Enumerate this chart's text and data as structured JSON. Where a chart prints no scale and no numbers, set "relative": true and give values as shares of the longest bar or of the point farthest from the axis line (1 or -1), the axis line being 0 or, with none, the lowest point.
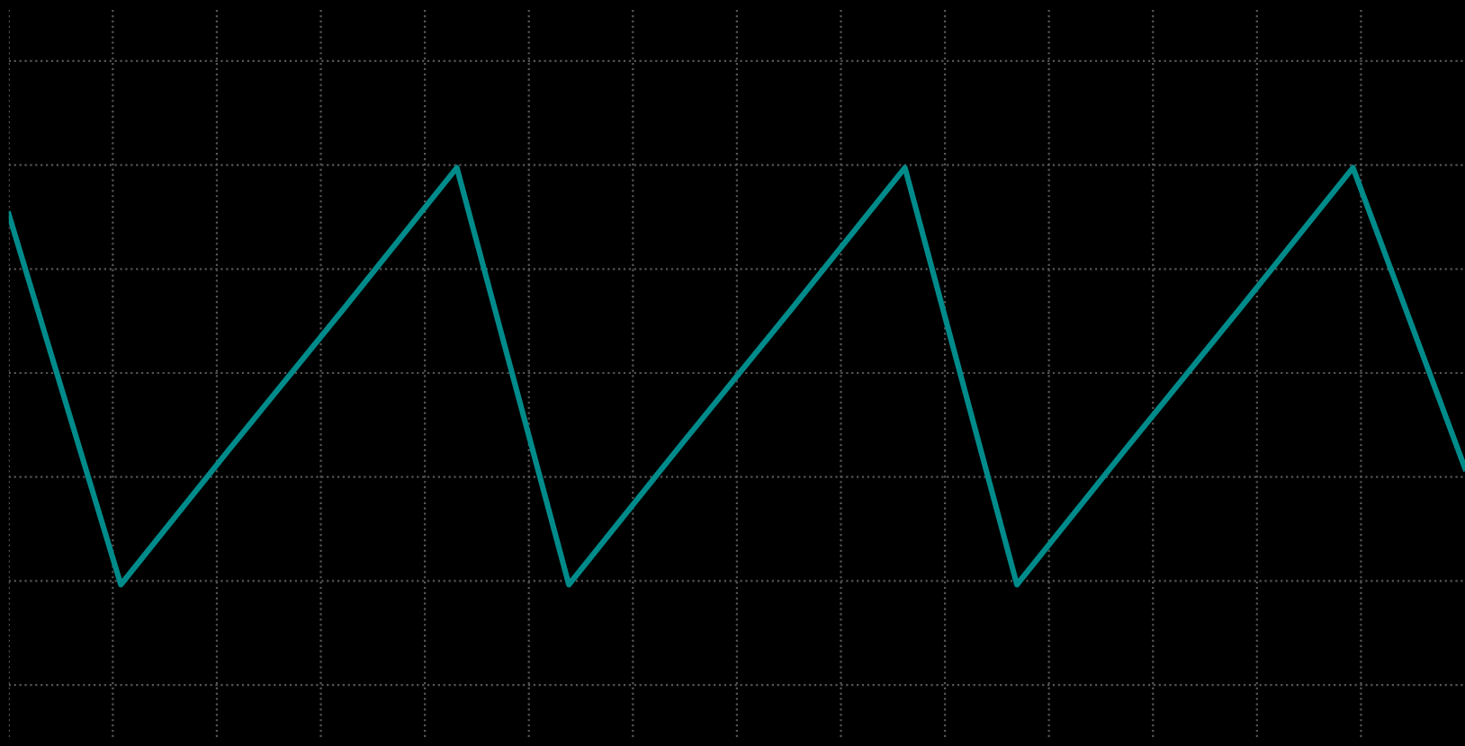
{
  "chart_data": {
    "type": "line",
    "relative": true,
    "categories": [
      null,
      null,
      null,
      null,
      null,
      null,
      null,
      null,
      null,
      null,
      null,
      null,
      null,
      null
    ],
    "series": [
      {
        "color": "#008b8b",
        "values": [
          0.75,
          -1,
          -0.34,
          0.31,
          0.97,
          -1,
          -0.34,
          0.31,
          0.97,
          -1,
          -0.34,
          0.31,
          0.97,
          -0.45
        ]
      }
    ],
    "grid": true,
    "marker": "none",
    "line_style": "solid"
  }
}
